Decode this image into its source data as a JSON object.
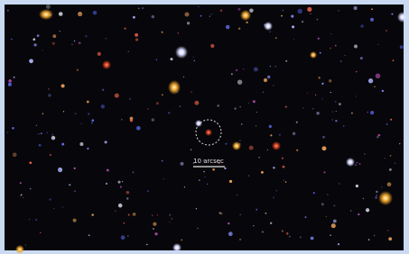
{
  "scale_bar": {
    "label": "10 arcsec"
  }
}
